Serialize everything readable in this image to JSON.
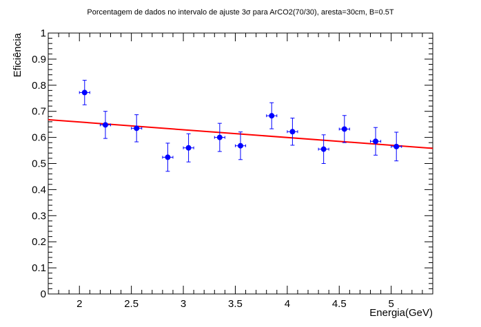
{
  "chart_data": {
    "type": "scatter",
    "title": "Porcentagem de dados no intervalo de ajuste 3σ para ArCO2(70/30), aresta=30cm, B=0.5T",
    "xlabel": "Energia(GeV)",
    "ylabel": "Eficiência",
    "xlim": [
      1.7,
      5.4
    ],
    "ylim": [
      0,
      1
    ],
    "x_ticks": [
      2,
      2.5,
      3,
      3.5,
      4,
      4.5,
      5
    ],
    "x_tick_labels": [
      "2",
      "2.5",
      "3",
      "3.5",
      "4",
      "4.5",
      "5"
    ],
    "y_ticks": [
      0,
      0.1,
      0.2,
      0.3,
      0.4,
      0.5,
      0.6,
      0.7,
      0.8,
      0.9,
      1
    ],
    "y_tick_labels": [
      "0",
      "0.1",
      "0.2",
      "0.3",
      "0.4",
      "0.5",
      "0.6",
      "0.7",
      "0.8",
      "0.9",
      "1"
    ],
    "grid": false,
    "series": [
      {
        "color": "#0000ff",
        "points": [
          {
            "x": 2.05,
            "y": 0.772,
            "xerr": 0.05,
            "yerr": 0.047
          },
          {
            "x": 2.25,
            "y": 0.648,
            "xerr": 0.05,
            "yerr": 0.052
          },
          {
            "x": 2.55,
            "y": 0.635,
            "xerr": 0.05,
            "yerr": 0.052
          },
          {
            "x": 2.85,
            "y": 0.524,
            "xerr": 0.05,
            "yerr": 0.054
          },
          {
            "x": 3.05,
            "y": 0.56,
            "xerr": 0.05,
            "yerr": 0.054
          },
          {
            "x": 3.35,
            "y": 0.6,
            "xerr": 0.05,
            "yerr": 0.054
          },
          {
            "x": 3.55,
            "y": 0.568,
            "xerr": 0.05,
            "yerr": 0.053
          },
          {
            "x": 3.85,
            "y": 0.683,
            "xerr": 0.05,
            "yerr": 0.05
          },
          {
            "x": 4.05,
            "y": 0.622,
            "xerr": 0.05,
            "yerr": 0.052
          },
          {
            "x": 4.35,
            "y": 0.555,
            "xerr": 0.05,
            "yerr": 0.055
          },
          {
            "x": 4.55,
            "y": 0.632,
            "xerr": 0.05,
            "yerr": 0.052
          },
          {
            "x": 4.85,
            "y": 0.585,
            "xerr": 0.05,
            "yerr": 0.053
          },
          {
            "x": 5.05,
            "y": 0.565,
            "xerr": 0.05,
            "yerr": 0.055
          }
        ]
      }
    ],
    "fit": {
      "color": "#ff0000",
      "x": [
        1.7,
        5.4
      ],
      "y": [
        0.668,
        0.558
      ]
    }
  }
}
